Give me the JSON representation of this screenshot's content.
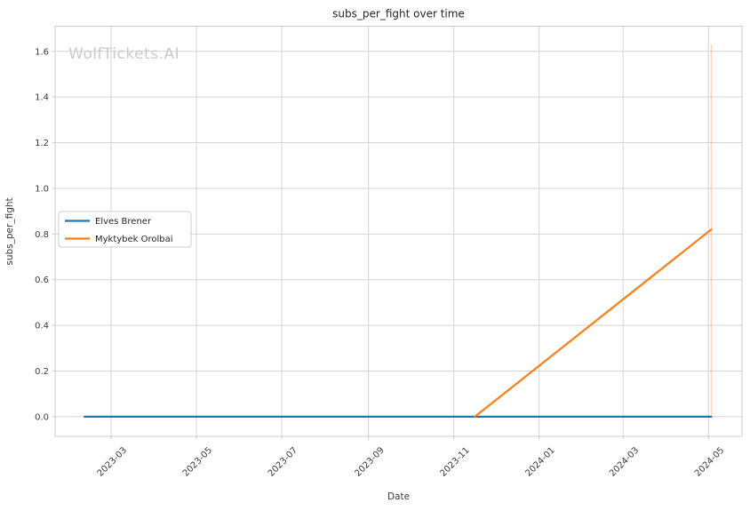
{
  "chart_data": {
    "type": "line",
    "title": "subs_per_fight over time",
    "xlabel": "Date",
    "ylabel": "subs_per_fight",
    "watermark": "WolfTickets.AI",
    "x_ticks": [
      "2023-03",
      "2023-05",
      "2023-07",
      "2023-09",
      "2023-11",
      "2024-01",
      "2024-03",
      "2024-05"
    ],
    "y_ticks": [
      "0.0",
      "0.2",
      "0.4",
      "0.6",
      "0.8",
      "1.0",
      "1.2",
      "1.4",
      "1.6"
    ],
    "x_range": [
      "2023-01-20",
      "2024-05-25"
    ],
    "y_range": [
      -0.086,
      1.71
    ],
    "grid": true,
    "legend_position": "center-left",
    "series": [
      {
        "name": "Elves Brener",
        "color": "#1f77b4",
        "points": [
          [
            "2023-02-10",
            0.0
          ],
          [
            "2024-05-03",
            0.0
          ]
        ]
      },
      {
        "name": "Myktybek Orolbai",
        "color": "#ff7f0e",
        "points": [
          [
            "2023-11-16",
            0.0
          ],
          [
            "2024-05-03",
            0.82
          ]
        ]
      }
    ],
    "vline": {
      "x": "2024-05-03",
      "y0": 0.0,
      "y1": 1.63,
      "color": "rgba(255,127,14,0.3)"
    },
    "style": {
      "grid_color": "#d4d4d4",
      "spine_color": "#cdcdcd",
      "tick_text_color": "#3b3b3b",
      "title_color": "#262626",
      "watermark_color": "#cbcbcb",
      "legend_border_color": "#cccccc",
      "background": "#ffffff"
    }
  }
}
